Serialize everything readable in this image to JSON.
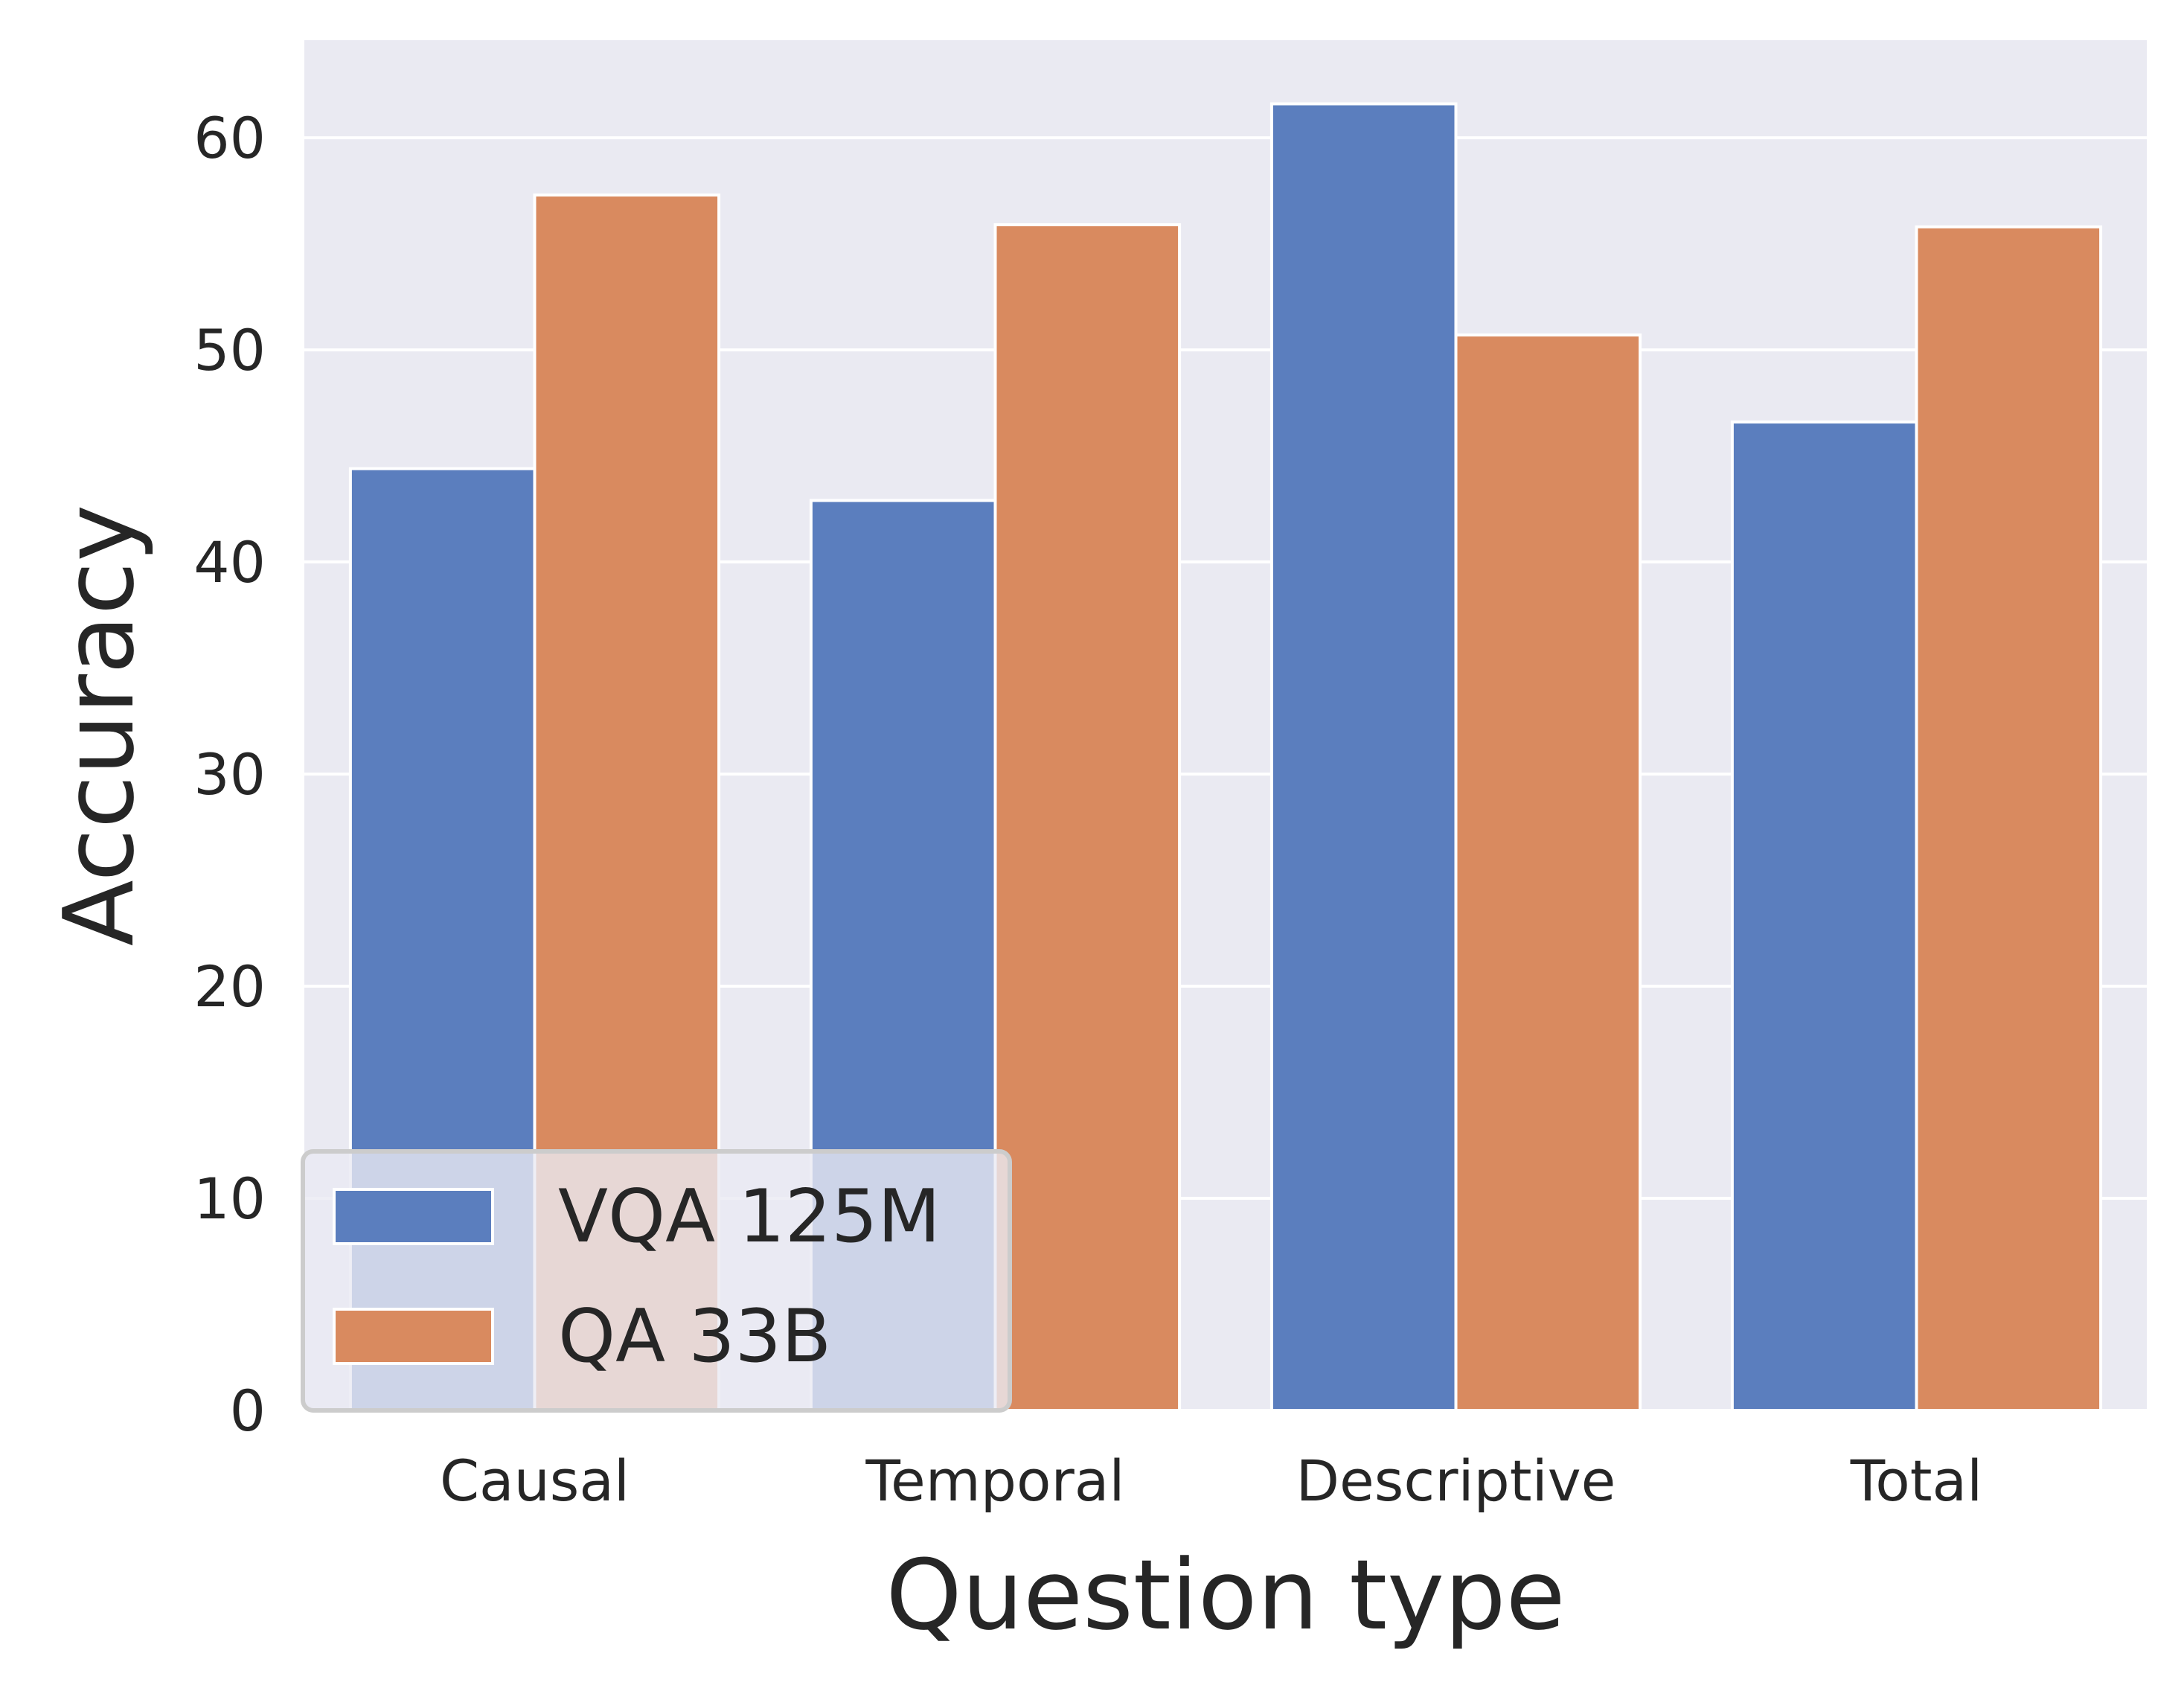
{
  "chart_data": {
    "type": "bar",
    "title": "",
    "xlabel": "Question type",
    "ylabel": "Accuracy",
    "categories": [
      "Causal",
      "Temporal",
      "Descriptive",
      "Total"
    ],
    "series": [
      {
        "name": "VQA 125M",
        "color": "#5b7ebe",
        "values": [
          44.4,
          42.9,
          61.6,
          46.6
        ]
      },
      {
        "name": "QA 33B",
        "color": "#d98a5f",
        "values": [
          57.3,
          55.9,
          50.7,
          55.8
        ]
      }
    ],
    "ylim": [
      0,
      64.6
    ],
    "yticks": [
      0,
      10,
      20,
      30,
      40,
      50,
      60
    ],
    "grid": true,
    "legend_position": "bottom-left"
  }
}
